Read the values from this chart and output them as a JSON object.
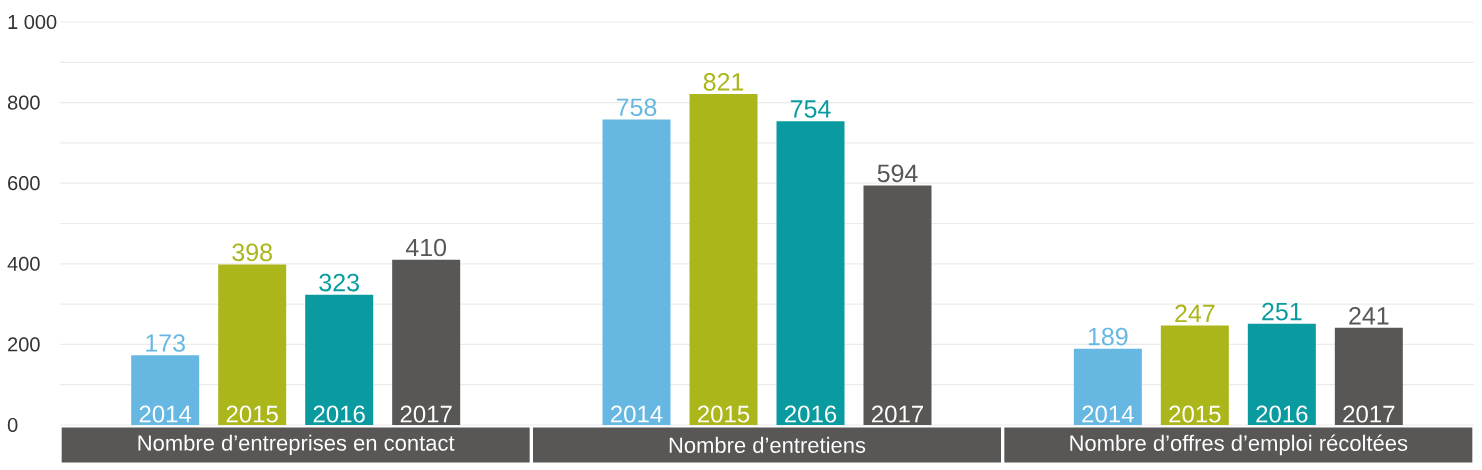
{
  "chart_data": {
    "type": "bar",
    "categories": [
      "Nombre d’entreprises en contact",
      "Nombre d’entretiens",
      "Nombre d’offres d’emploi récoltées"
    ],
    "series": [
      {
        "name": "2014",
        "color": "#66b8e2",
        "values": [
          173,
          758,
          189
        ]
      },
      {
        "name": "2015",
        "color": "#abb61b",
        "values": [
          398,
          821,
          247
        ]
      },
      {
        "name": "2016",
        "color": "#0a9ba0",
        "values": [
          323,
          754,
          251
        ]
      },
      {
        "name": "2017",
        "color": "#585756",
        "values": [
          410,
          594,
          241
        ]
      }
    ],
    "ylim": [
      0,
      1000
    ],
    "yticks": [
      0,
      {
        "value": 100,
        "label": null
      },
      200,
      {
        "value": 300,
        "label": null
      },
      400,
      {
        "value": 500,
        "label": null
      },
      600,
      {
        "value": 700,
        "label": null
      },
      800,
      {
        "value": 900,
        "label": null
      },
      {
        "value": 1000,
        "label": "1 000"
      }
    ],
    "grid": "y",
    "data_labels": true
  }
}
